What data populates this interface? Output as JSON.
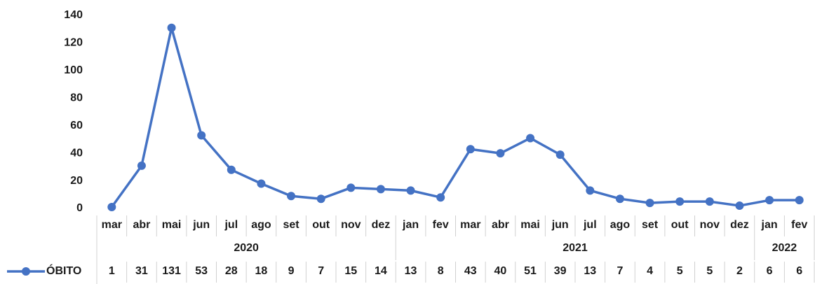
{
  "chart_data": {
    "type": "line",
    "category_groups": [
      {
        "label": "2020",
        "categories": [
          "mar",
          "abr",
          "mai",
          "jun",
          "jul",
          "ago",
          "set",
          "out",
          "nov",
          "dez"
        ]
      },
      {
        "label": "2021",
        "categories": [
          "jan",
          "fev",
          "mar",
          "abr",
          "mai",
          "jun",
          "jul",
          "ago",
          "set",
          "out",
          "nov",
          "dez"
        ]
      },
      {
        "label": "2022",
        "categories": [
          "jan",
          "fev"
        ]
      }
    ],
    "series": [
      {
        "name": "ÓBITO",
        "color": "#4472c4",
        "values": [
          1,
          31,
          131,
          53,
          28,
          18,
          9,
          7,
          15,
          14,
          13,
          8,
          43,
          40,
          51,
          39,
          13,
          7,
          4,
          5,
          5,
          2,
          6,
          6
        ]
      }
    ],
    "ylim": [
      0,
      140
    ],
    "yticks": [
      0,
      20,
      40,
      60,
      80,
      100,
      120,
      140
    ],
    "grid": false,
    "legend": "left-table"
  }
}
